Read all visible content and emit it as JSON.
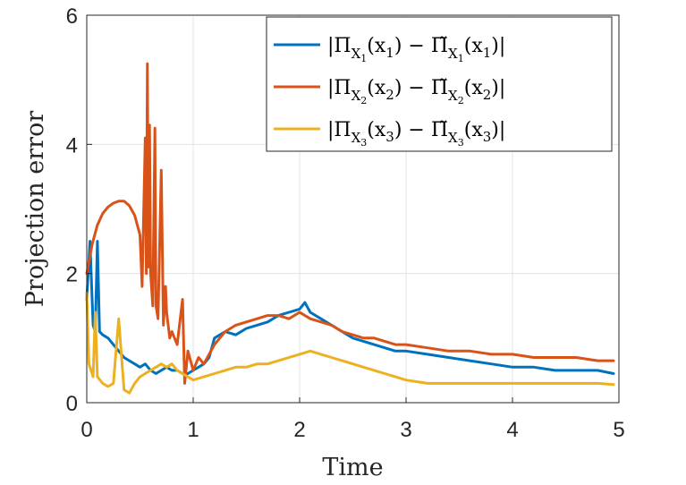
{
  "chart_data": {
    "type": "line",
    "title": "",
    "xlabel": "Time",
    "ylabel": "Projection error",
    "xlim": [
      0,
      5
    ],
    "ylim": [
      0,
      6
    ],
    "xticks": [
      "0",
      "1",
      "2",
      "3",
      "4",
      "5"
    ],
    "yticks": [
      "0",
      "2",
      "4",
      "6"
    ],
    "grid": true,
    "legend_position": "top-right",
    "series": [
      {
        "name": "|Π_{X1}(x1) − Π̃_{X1}(x1)|",
        "legend_parts": {
          "pre": "|Π",
          "sub": "X",
          "subsub": "1",
          "mid": "(x",
          "argsub": "1",
          "op": ") − Π̃",
          "post": ")|"
        },
        "color": "#0072BD",
        "x": [
          0.0,
          0.03,
          0.06,
          0.08,
          0.1,
          0.12,
          0.15,
          0.2,
          0.25,
          0.3,
          0.35,
          0.4,
          0.45,
          0.5,
          0.55,
          0.6,
          0.65,
          0.7,
          0.75,
          0.8,
          0.85,
          0.9,
          0.95,
          1.0,
          1.05,
          1.1,
          1.15,
          1.2,
          1.3,
          1.4,
          1.5,
          1.6,
          1.7,
          1.8,
          1.9,
          2.0,
          2.05,
          2.1,
          2.2,
          2.3,
          2.4,
          2.5,
          2.6,
          2.7,
          2.8,
          2.9,
          3.0,
          3.2,
          3.4,
          3.6,
          3.8,
          4.0,
          4.2,
          4.4,
          4.6,
          4.8,
          4.95
        ],
        "values": [
          1.6,
          2.5,
          1.2,
          1.1,
          2.5,
          1.1,
          1.05,
          1.0,
          0.9,
          0.8,
          0.7,
          0.65,
          0.6,
          0.55,
          0.6,
          0.5,
          0.45,
          0.5,
          0.55,
          0.5,
          0.5,
          0.45,
          0.45,
          0.5,
          0.55,
          0.6,
          0.7,
          1.0,
          1.1,
          1.05,
          1.15,
          1.2,
          1.25,
          1.35,
          1.4,
          1.45,
          1.55,
          1.4,
          1.3,
          1.2,
          1.1,
          1.0,
          0.95,
          0.9,
          0.85,
          0.8,
          0.8,
          0.75,
          0.7,
          0.65,
          0.6,
          0.55,
          0.55,
          0.5,
          0.5,
          0.5,
          0.45
        ]
      },
      {
        "name": "|Π_{X2}(x2) − Π̃_{X2}(x2)|",
        "legend_parts": {
          "pre": "|Π",
          "sub": "X",
          "subsub": "2",
          "mid": "(x",
          "argsub": "2",
          "op": ") − Π̃",
          "post": ")|"
        },
        "color": "#D95319",
        "x": [
          0.0,
          0.05,
          0.1,
          0.15,
          0.2,
          0.25,
          0.3,
          0.35,
          0.4,
          0.45,
          0.5,
          0.52,
          0.55,
          0.56,
          0.57,
          0.58,
          0.59,
          0.6,
          0.62,
          0.64,
          0.65,
          0.67,
          0.7,
          0.72,
          0.74,
          0.75,
          0.78,
          0.8,
          0.85,
          0.9,
          0.92,
          0.95,
          1.0,
          1.05,
          1.1,
          1.2,
          1.3,
          1.4,
          1.5,
          1.6,
          1.7,
          1.8,
          1.9,
          2.0,
          2.1,
          2.2,
          2.3,
          2.4,
          2.5,
          2.6,
          2.7,
          2.8,
          2.9,
          3.0,
          3.2,
          3.4,
          3.6,
          3.8,
          4.0,
          4.2,
          4.4,
          4.6,
          4.8,
          4.95
        ],
        "values": [
          2.0,
          2.45,
          2.75,
          2.93,
          3.03,
          3.09,
          3.12,
          3.12,
          3.05,
          2.9,
          2.6,
          1.8,
          4.1,
          2.0,
          5.25,
          2.1,
          4.3,
          2.0,
          1.5,
          4.25,
          1.5,
          1.3,
          3.6,
          1.2,
          1.8,
          1.4,
          1.0,
          1.1,
          0.9,
          1.6,
          0.3,
          0.8,
          0.5,
          0.7,
          0.6,
          0.9,
          1.1,
          1.2,
          1.25,
          1.3,
          1.35,
          1.35,
          1.3,
          1.4,
          1.3,
          1.25,
          1.2,
          1.1,
          1.05,
          1.0,
          1.0,
          0.95,
          0.9,
          0.9,
          0.85,
          0.8,
          0.8,
          0.75,
          0.75,
          0.7,
          0.7,
          0.7,
          0.65,
          0.65
        ]
      },
      {
        "name": "|Π_{X3}(x3) − Π̃_{X3}(x3)|",
        "legend_parts": {
          "pre": "|Π",
          "sub": "X",
          "subsub": "3",
          "mid": "(x",
          "argsub": "3",
          "op": ") − Π̃",
          "post": ")|"
        },
        "color": "#EDB120",
        "x": [
          0.0,
          0.02,
          0.04,
          0.06,
          0.08,
          0.1,
          0.15,
          0.2,
          0.25,
          0.3,
          0.35,
          0.4,
          0.45,
          0.5,
          0.55,
          0.6,
          0.65,
          0.7,
          0.75,
          0.8,
          0.85,
          0.9,
          0.95,
          1.0,
          1.1,
          1.2,
          1.3,
          1.4,
          1.5,
          1.6,
          1.7,
          1.8,
          1.9,
          2.0,
          2.1,
          2.2,
          2.3,
          2.4,
          2.5,
          2.6,
          2.7,
          2.8,
          2.9,
          3.0,
          3.2,
          3.4,
          3.6,
          3.8,
          4.0,
          4.2,
          4.4,
          4.6,
          4.8,
          4.95
        ],
        "values": [
          1.7,
          0.6,
          0.5,
          0.4,
          1.4,
          0.4,
          0.3,
          0.25,
          0.3,
          1.3,
          0.2,
          0.15,
          0.3,
          0.4,
          0.45,
          0.5,
          0.55,
          0.6,
          0.55,
          0.6,
          0.5,
          0.45,
          0.4,
          0.35,
          0.4,
          0.45,
          0.5,
          0.55,
          0.55,
          0.6,
          0.6,
          0.65,
          0.7,
          0.75,
          0.8,
          0.75,
          0.7,
          0.65,
          0.6,
          0.55,
          0.5,
          0.45,
          0.4,
          0.35,
          0.3,
          0.3,
          0.3,
          0.3,
          0.3,
          0.3,
          0.3,
          0.3,
          0.3,
          0.28
        ]
      }
    ]
  }
}
